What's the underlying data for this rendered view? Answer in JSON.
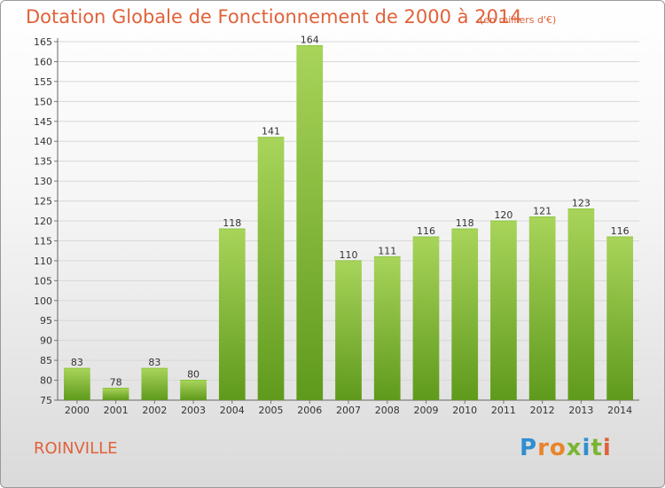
{
  "title": "Dotation Globale de Fonctionnement de 2000 à 2014",
  "unit": "(en milliers d'€)",
  "commune": "ROINVILLE",
  "logo": {
    "letters": [
      "P",
      "r",
      "o",
      "x",
      "i",
      "t",
      "i"
    ],
    "colors": [
      "#2f8fd0",
      "#e8852b",
      "#e8852b",
      "#7ab532",
      "#2f8fd0",
      "#7ab532",
      "#e0623a"
    ]
  },
  "colors": {
    "accent": "#e0623a",
    "bar_light": "#a8d45a",
    "bar_dark": "#5f9a1c"
  },
  "chart_data": {
    "type": "bar",
    "title": "Dotation Globale de Fonctionnement de 2000 à 2014",
    "categories": [
      "2000",
      "2001",
      "2002",
      "2003",
      "2004",
      "2005",
      "2006",
      "2007",
      "2008",
      "2009",
      "2010",
      "2011",
      "2012",
      "2013",
      "2014"
    ],
    "values": [
      83,
      78,
      83,
      80,
      118,
      141,
      164,
      110,
      111,
      116,
      118,
      120,
      121,
      123,
      116
    ],
    "ylim": [
      75,
      165
    ],
    "yticks": [
      75,
      80,
      85,
      90,
      95,
      100,
      105,
      110,
      115,
      120,
      125,
      130,
      135,
      140,
      145,
      150,
      155,
      160,
      165
    ],
    "grid": true,
    "xlabel": "",
    "ylabel": ""
  }
}
